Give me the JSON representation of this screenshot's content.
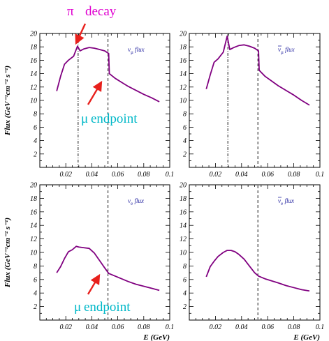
{
  "chart_data": [
    {
      "type": "line",
      "legend": {
        "symbol": "ν",
        "sub": "μ",
        "bar": false,
        "text": "flux"
      },
      "xlim": [
        0.0,
        0.1
      ],
      "ylim": [
        0,
        20
      ],
      "x_ticks": [
        "0.02",
        "0.04",
        "0.06",
        "0.08",
        "0.1"
      ],
      "y_ticks": [
        "2",
        "4",
        "6",
        "8",
        "10",
        "12",
        "14",
        "16",
        "18",
        "20"
      ],
      "ylabel": "Flux (GeV⁻¹cm⁻² s⁻¹)",
      "xlabel": "",
      "series": [
        {
          "x": [
            0.013,
            0.016,
            0.019,
            0.022,
            0.026,
            0.029,
            0.031,
            0.034,
            0.038,
            0.042,
            0.046,
            0.05,
            0.053,
            0.0535,
            0.058,
            0.063,
            0.068,
            0.074,
            0.08,
            0.086,
            0.092
          ],
          "y": [
            11.4,
            13.6,
            15.4,
            16.0,
            16.6,
            18.1,
            17.4,
            17.7,
            17.9,
            17.8,
            17.6,
            17.4,
            17.0,
            14.0,
            13.3,
            12.7,
            12.1,
            11.5,
            10.9,
            10.4,
            9.8
          ]
        }
      ],
      "vlines": [
        {
          "x": 0.0295,
          "style": "dashdot"
        },
        {
          "x": 0.0525,
          "style": "dashed"
        }
      ]
    },
    {
      "type": "line",
      "legend": {
        "symbol": "ν",
        "sub": "μ",
        "bar": true,
        "text": "flux"
      },
      "xlim": [
        0.0,
        0.1
      ],
      "ylim": [
        0,
        20
      ],
      "x_ticks": [
        "0.02",
        "0.04",
        "0.06",
        "0.08",
        "0.1"
      ],
      "y_ticks": [
        "2",
        "4",
        "6",
        "8",
        "10",
        "12",
        "14",
        "16",
        "18",
        "20"
      ],
      "ylabel": "",
      "xlabel": "",
      "series": [
        {
          "x": [
            0.013,
            0.016,
            0.019,
            0.022,
            0.026,
            0.029,
            0.031,
            0.034,
            0.038,
            0.042,
            0.046,
            0.05,
            0.053,
            0.0535,
            0.058,
            0.063,
            0.068,
            0.074,
            0.08,
            0.086,
            0.092
          ],
          "y": [
            11.7,
            13.8,
            15.7,
            16.2,
            17.2,
            19.6,
            17.6,
            17.9,
            18.2,
            18.3,
            18.1,
            17.8,
            17.4,
            14.5,
            13.6,
            12.9,
            12.2,
            11.5,
            10.8,
            10.0,
            9.3
          ]
        }
      ],
      "vlines": [
        {
          "x": 0.0295,
          "style": "dashdot"
        },
        {
          "x": 0.0525,
          "style": "dashed"
        }
      ]
    },
    {
      "type": "line",
      "legend": {
        "symbol": "ν",
        "sub": "e",
        "bar": false,
        "text": "flux"
      },
      "xlim": [
        0.0,
        0.1
      ],
      "ylim": [
        0,
        20
      ],
      "x_ticks": [
        "0.02",
        "0.04",
        "0.06",
        "0.08",
        "0.1"
      ],
      "y_ticks": [
        "2",
        "4",
        "6",
        "8",
        "10",
        "12",
        "14",
        "16",
        "18",
        "20"
      ],
      "ylabel": "Flux (GeV⁻¹cm⁻² s⁻¹)",
      "xlabel": "E (GeV)",
      "series": [
        {
          "x": [
            0.013,
            0.016,
            0.019,
            0.022,
            0.025,
            0.028,
            0.03,
            0.034,
            0.038,
            0.042,
            0.046,
            0.05,
            0.053,
            0.058,
            0.063,
            0.068,
            0.074,
            0.08,
            0.086,
            0.092
          ],
          "y": [
            7.0,
            7.9,
            9.1,
            10.1,
            10.4,
            10.9,
            10.8,
            10.7,
            10.6,
            9.9,
            8.8,
            7.7,
            6.9,
            6.5,
            6.1,
            5.7,
            5.3,
            5.0,
            4.7,
            4.4
          ]
        }
      ],
      "vlines": [
        {
          "x": 0.0525,
          "style": "dashed"
        }
      ]
    },
    {
      "type": "line",
      "legend": {
        "symbol": "ν",
        "sub": "e",
        "bar": true,
        "text": "flux"
      },
      "xlim": [
        0.0,
        0.1
      ],
      "ylim": [
        0,
        20
      ],
      "x_ticks": [
        "0.02",
        "0.04",
        "0.06",
        "0.08",
        "0.1"
      ],
      "y_ticks": [
        "2",
        "4",
        "6",
        "8",
        "10",
        "12",
        "14",
        "16",
        "18",
        "20"
      ],
      "ylabel": "",
      "xlabel": "E (GeV)",
      "series": [
        {
          "x": [
            0.013,
            0.016,
            0.019,
            0.022,
            0.026,
            0.029,
            0.032,
            0.035,
            0.038,
            0.042,
            0.046,
            0.05,
            0.053,
            0.058,
            0.063,
            0.068,
            0.074,
            0.08,
            0.086,
            0.092
          ],
          "y": [
            6.4,
            7.9,
            8.7,
            9.4,
            10.0,
            10.3,
            10.3,
            10.1,
            9.7,
            9.0,
            8.0,
            7.0,
            6.5,
            6.1,
            5.8,
            5.5,
            5.1,
            4.8,
            4.5,
            4.3
          ]
        }
      ],
      "vlines": [
        {
          "x": 0.0525,
          "style": "dashed"
        }
      ]
    }
  ],
  "annotations": {
    "pi_symbol": "π",
    "pi_text": "decay",
    "mu_symbol": "μ",
    "mu_text_top": "endpoint",
    "mu_text_bottom": "endpoint"
  },
  "colors": {
    "curve": "#800080",
    "pi": "#e000d0",
    "mu": "#00b8c8",
    "arrow": "#e8201c",
    "legend": "#1f1f9e"
  }
}
